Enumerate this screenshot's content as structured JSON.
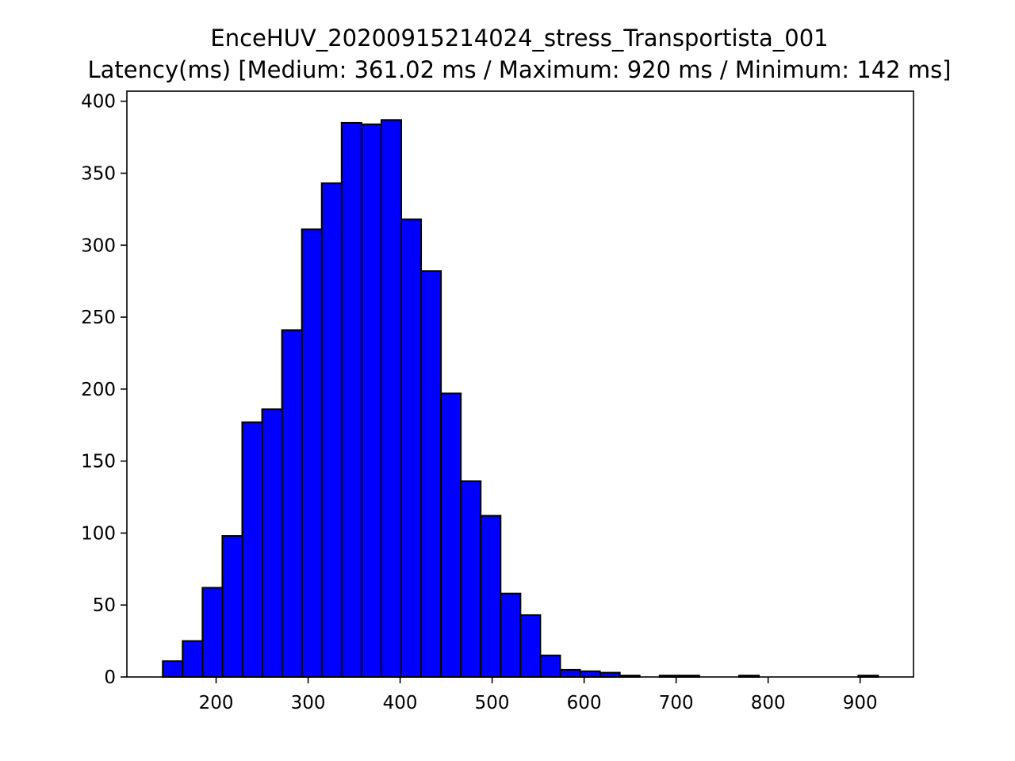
{
  "chart_data": {
    "type": "bar",
    "title": "EnceHUV_20200915214024_stress_Transportista_001",
    "subtitle": "Latency(ms) [Medium: 361.02 ms / Maximum: 920 ms / Minimum: 142 ms]",
    "xlabel": "",
    "ylabel": "",
    "xlim": [
      103,
      958
    ],
    "ylim": [
      0,
      407
    ],
    "xticks": [
      200,
      300,
      400,
      500,
      600,
      700,
      800,
      900
    ],
    "yticks": [
      0,
      50,
      100,
      150,
      200,
      250,
      300,
      350,
      400
    ],
    "grid": false,
    "bar_color": "#0000ff",
    "edge_color": "#000000",
    "bins": {
      "start": 142,
      "width": 21.6,
      "counts": [
        11,
        25,
        62,
        98,
        177,
        186,
        241,
        311,
        343,
        385,
        384,
        387,
        318,
        282,
        197,
        136,
        112,
        58,
        43,
        15,
        5,
        4,
        3,
        1,
        0,
        1,
        1,
        0,
        0,
        1,
        0,
        0,
        0,
        0,
        0,
        1
      ]
    }
  }
}
